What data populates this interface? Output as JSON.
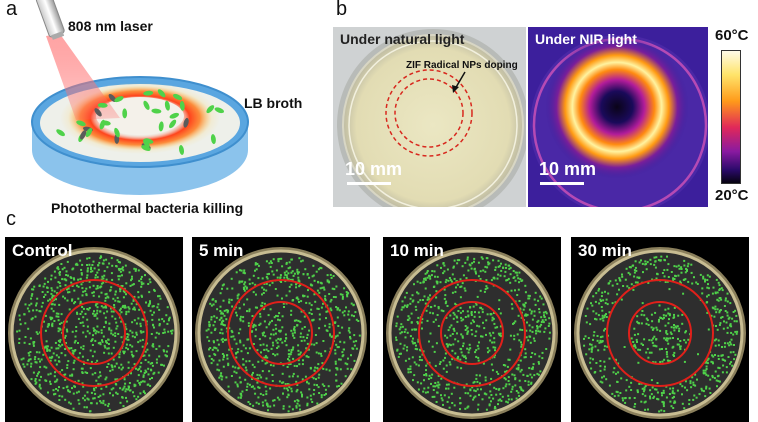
{
  "panel_a": {
    "label": "a",
    "laser": "808 nm laser",
    "broth": "LB broth",
    "caption": "Photothermal bacteria killing"
  },
  "panel_b": {
    "label": "b",
    "left_title": "Under natural light",
    "doping_label": "ZIF Radical NPs doping",
    "scale_left": "10 mm",
    "right_title": "Under NIR light",
    "scale_right": "10 mm",
    "temp_max": "60°C",
    "temp_min": "20°C"
  },
  "panel_c": {
    "label": "c",
    "dishes": [
      {
        "title": "Control",
        "ring_dark": 0.0
      },
      {
        "title": "5 min",
        "ring_dark": 0.35
      },
      {
        "title": "10 min",
        "ring_dark": 0.6
      },
      {
        "title": "30 min",
        "ring_dark": 0.95
      }
    ]
  },
  "colors": {
    "bacteria_green": "#4fd24a",
    "ring_red": "#e0201a",
    "dish_blue": "#6fb3e6",
    "heat_orange": "#f26a1b"
  }
}
